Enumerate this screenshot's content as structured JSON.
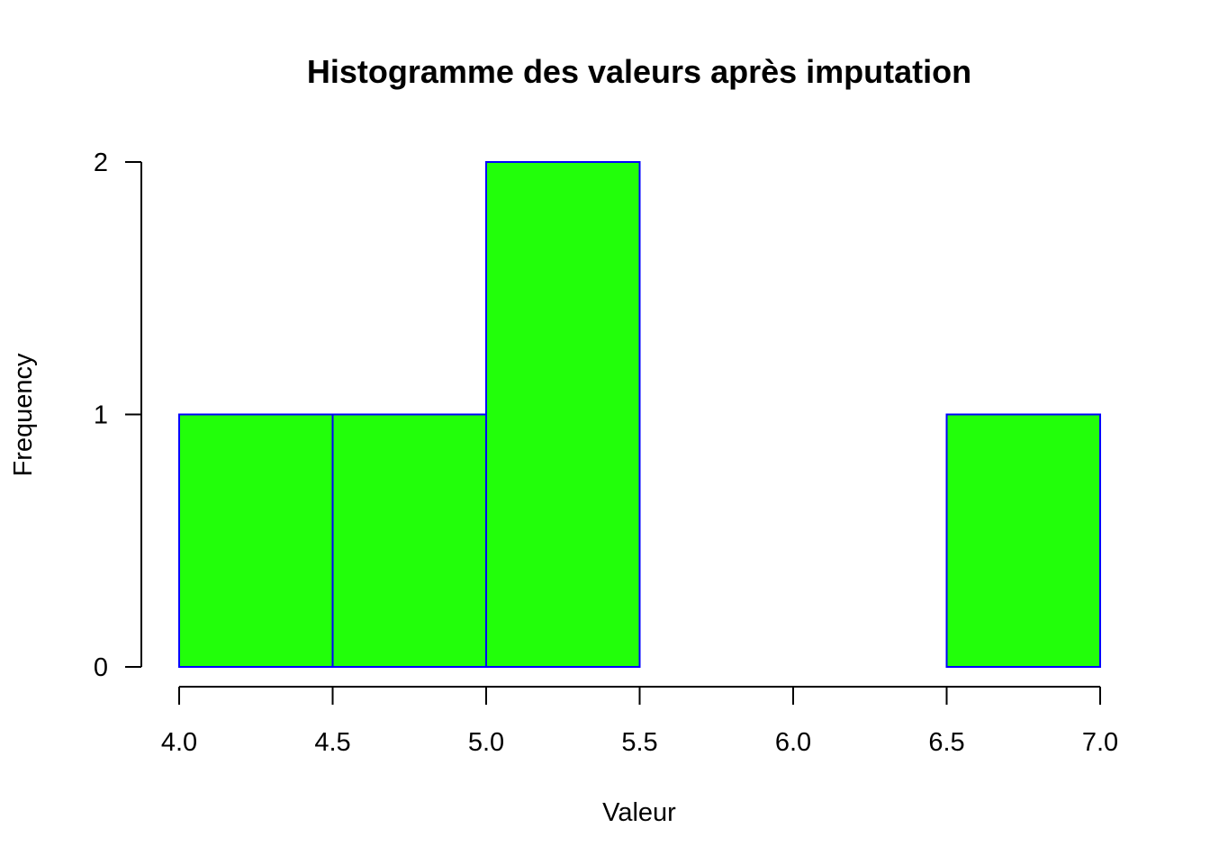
{
  "chart_data": {
    "type": "bar",
    "subtype": "histogram",
    "title": "Histogramme des valeurs après imputation",
    "xlabel": "Valeur",
    "ylabel": "Frequency",
    "bins": [
      {
        "start": 4.0,
        "end": 4.5,
        "count": 1
      },
      {
        "start": 4.5,
        "end": 5.0,
        "count": 1
      },
      {
        "start": 5.0,
        "end": 5.5,
        "count": 2
      },
      {
        "start": 5.5,
        "end": 6.0,
        "count": 0
      },
      {
        "start": 6.0,
        "end": 6.5,
        "count": 0
      },
      {
        "start": 6.5,
        "end": 7.0,
        "count": 1
      }
    ],
    "xlim": [
      4.0,
      7.0
    ],
    "ylim": [
      0,
      2
    ],
    "x_ticks": [
      "4.0",
      "4.5",
      "5.0",
      "5.5",
      "6.0",
      "6.5",
      "7.0"
    ],
    "y_ticks": [
      "0",
      "1",
      "2"
    ],
    "bar_fill": "#22ff0a",
    "bar_border": "#0000ff",
    "grid": false,
    "legend": "none"
  }
}
